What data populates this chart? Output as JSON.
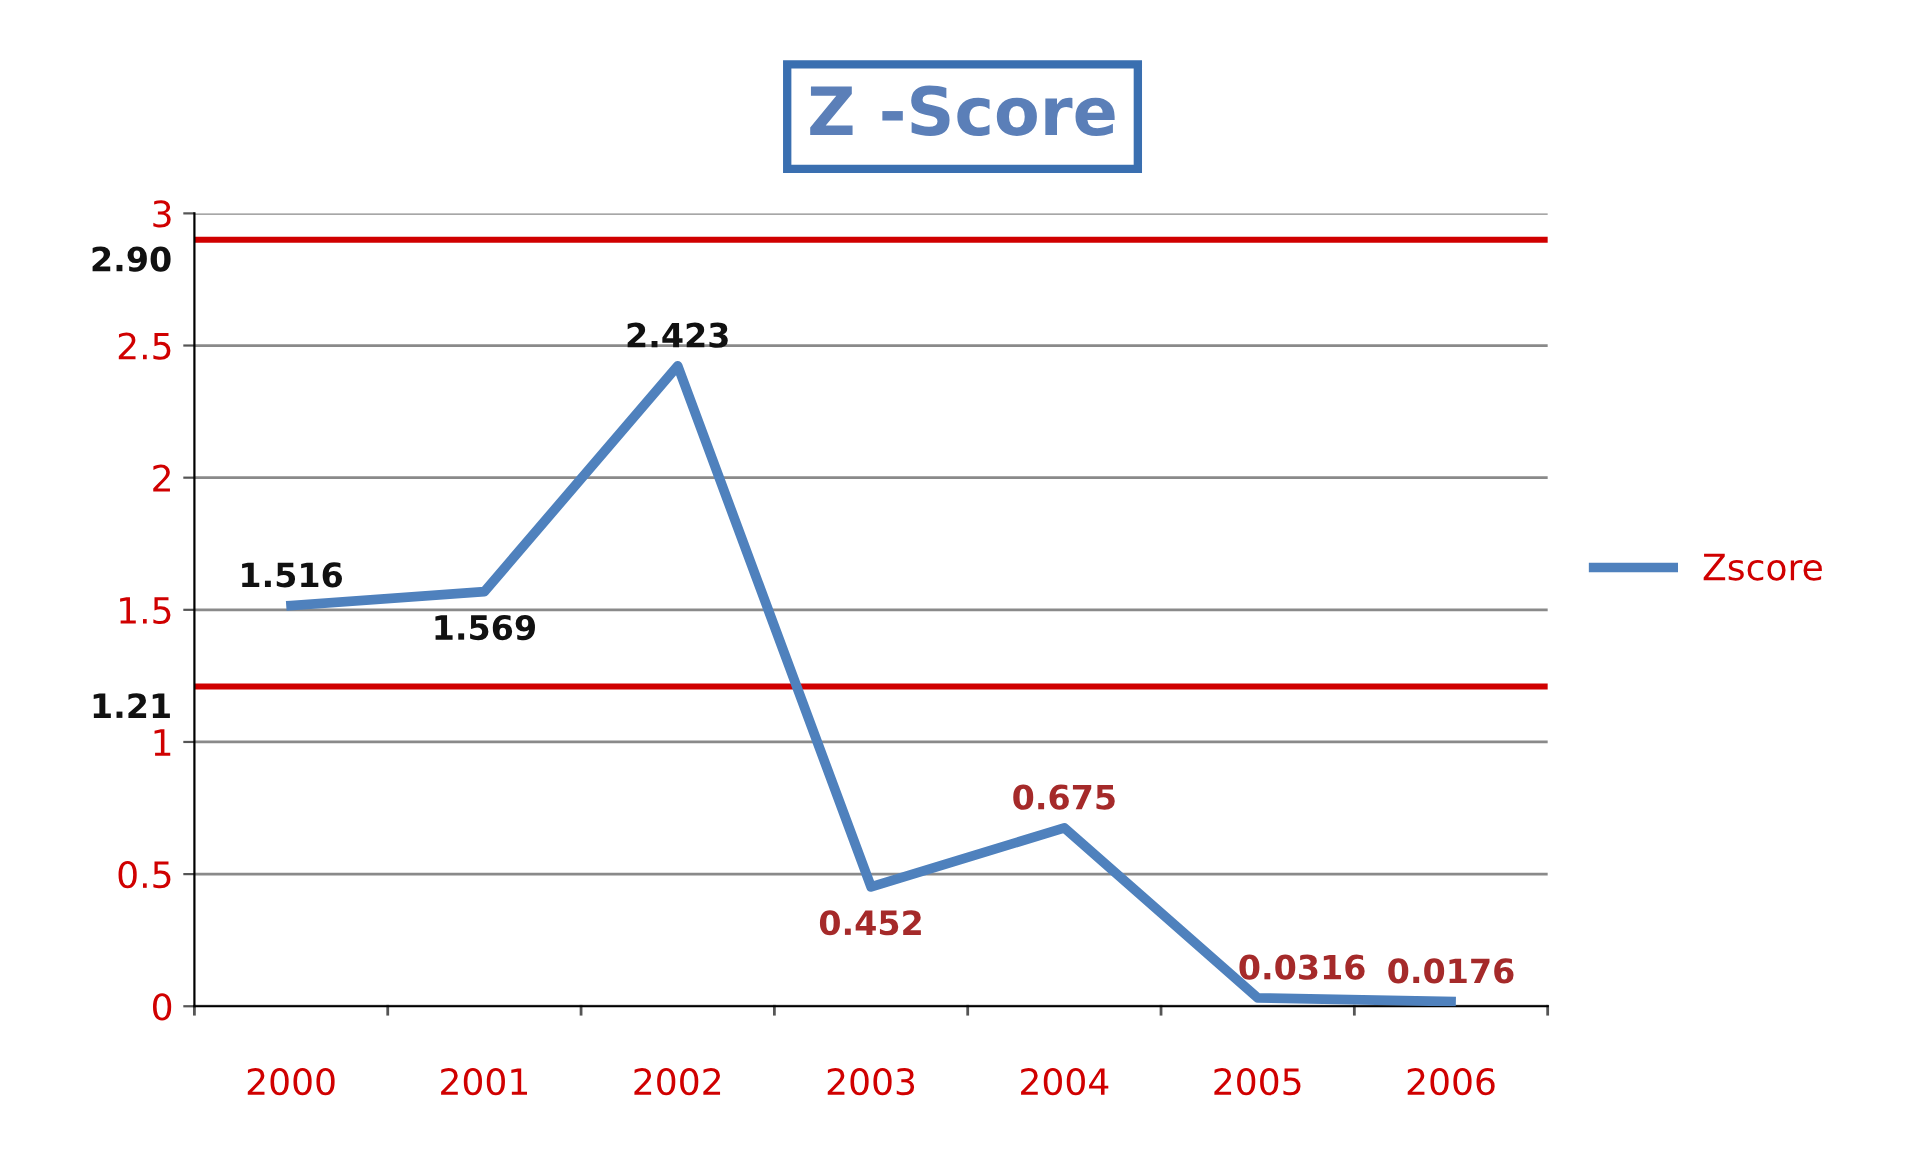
{
  "chart_data": {
    "type": "line",
    "title": "Z -Score",
    "categories": [
      "2000",
      "2001",
      "2002",
      "2003",
      "2004",
      "2005",
      "2006"
    ],
    "series": [
      {
        "name": "Zscore",
        "color": "#4f81bd",
        "values": [
          1.516,
          1.569,
          2.423,
          0.452,
          0.675,
          0.0316,
          0.0176
        ]
      }
    ],
    "data_labels": true,
    "ylim": [
      0,
      3
    ],
    "yticks": [
      0,
      0.5,
      1,
      1.5,
      2,
      2.5,
      3
    ],
    "ref_lines": [
      {
        "axis": "y",
        "value": 2.9,
        "label": "2.90",
        "color": "#d00000"
      },
      {
        "axis": "y",
        "value": 1.21,
        "label": "1.21",
        "color": "#d00000"
      }
    ],
    "grid": "y",
    "legend": "right",
    "marker": "none",
    "line_style": "solid"
  }
}
